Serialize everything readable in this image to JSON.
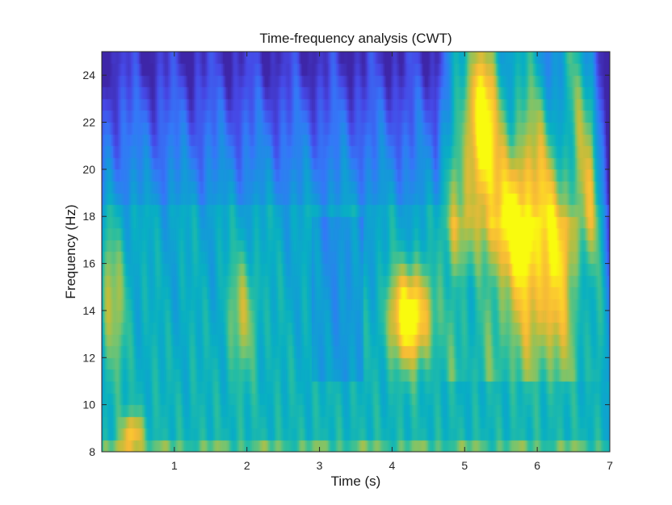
{
  "chart_data": {
    "type": "heatmap",
    "title": "Time-frequency analysis (CWT)",
    "xlabel": "Time (s)",
    "ylabel": "Frequency (Hz)",
    "xlim": [
      0,
      7
    ],
    "ylim": [
      8,
      25
    ],
    "xticks": [
      1,
      2,
      3,
      4,
      5,
      6,
      7
    ],
    "yticks": [
      8,
      10,
      12,
      14,
      16,
      18,
      20,
      22,
      24
    ],
    "colormap": "parula",
    "color_range": [
      0,
      1
    ],
    "frequency_band_hz": 0.5,
    "features": [
      {
        "label": "high-frequency burst",
        "time": 5.25,
        "freq": 22.5,
        "time_width": 0.2,
        "freq_width": 3.5,
        "magnitude": 0.55
      },
      {
        "label": "high-frequency burst",
        "time": 5.75,
        "freq": 17.0,
        "time_width": 0.25,
        "freq_width": 4.0,
        "magnitude": 0.45
      },
      {
        "label": "high-frequency burst",
        "time": 6.2,
        "freq": 15.0,
        "time_width": 0.25,
        "freq_width": 3.0,
        "magnitude": 0.4
      },
      {
        "label": "peak burst",
        "time": 4.25,
        "freq": 13.8,
        "time_width": 0.28,
        "freq_width": 2.0,
        "magnitude": 0.65
      },
      {
        "label": "low-frequency burst",
        "time": 0.42,
        "freq": 8.8,
        "time_width": 0.15,
        "freq_width": 0.8,
        "magnitude": 0.4
      },
      {
        "label": "band activity",
        "time": 1.95,
        "freq": 14.0,
        "time_width": 0.2,
        "freq_width": 2.5,
        "magnitude": 0.25
      },
      {
        "label": "band activity",
        "time": 0.15,
        "freq": 14.5,
        "time_width": 0.2,
        "freq_width": 3.0,
        "magnitude": 0.25
      }
    ]
  },
  "colors": {
    "background": "#ffffff",
    "axis": "#262626",
    "cmap_low": "#3e26a8",
    "cmap_mid": "#20b2aa",
    "cmap_high": "#f9fb0e"
  }
}
